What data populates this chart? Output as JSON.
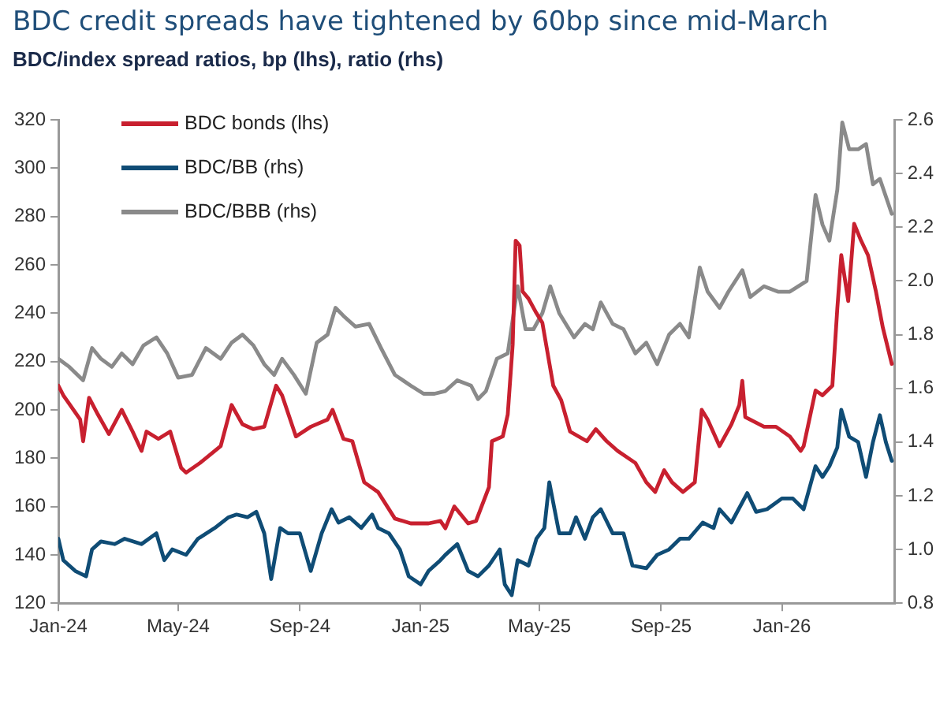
{
  "chart_data": {
    "type": "line",
    "title": "BDC credit spreads have tightened by 60bp since mid-March",
    "subtitle": "BDC/index spread ratios, bp (lhs), ratio (rhs)",
    "xlim": [
      "2024-01-01",
      "2026-04-25"
    ],
    "xticks": [
      {
        "value": "2024-01-01",
        "label": "Jan-24"
      },
      {
        "value": "2024-05-01",
        "label": "May-24"
      },
      {
        "value": "2024-09-01",
        "label": "Sep-24"
      },
      {
        "value": "2025-01-01",
        "label": "Jan-25"
      },
      {
        "value": "2025-05-01",
        "label": "May-25"
      },
      {
        "value": "2025-09-01",
        "label": "Sep-25"
      },
      {
        "value": "2026-01-01",
        "label": "Jan-26"
      }
    ],
    "ylim": [
      120,
      320
    ],
    "yticks": [
      120,
      140,
      160,
      180,
      200,
      220,
      240,
      260,
      280,
      300,
      320
    ],
    "y2lim": [
      0.8,
      2.6
    ],
    "y2ticks": [
      0.8,
      {
        "value": 1,
        "label": "1.0"
      },
      1.2,
      1.4,
      1.6,
      1.8,
      {
        "value": 2,
        "label": "2.0"
      },
      2.2,
      2.4,
      2.6
    ],
    "grid": false,
    "legend": "top left",
    "series": [
      {
        "name": "BDC bonds (lhs)",
        "color": "#c8202f",
        "x": [
          "2024-01-01",
          "2024-01-06",
          "2024-01-23",
          "2024-01-26",
          "2024-02-01",
          "2024-02-10",
          "2024-02-21",
          "2024-03-05",
          "2024-03-16",
          "2024-03-25",
          "2024-03-30",
          "2024-04-11",
          "2024-04-23",
          "2024-05-04",
          "2024-05-09",
          "2024-05-23",
          "2024-06-13",
          "2024-06-24",
          "2024-07-05",
          "2024-07-16",
          "2024-07-27",
          "2024-08-08",
          "2024-08-14",
          "2024-08-28",
          "2024-09-12",
          "2024-09-29",
          "2024-10-04",
          "2024-10-15",
          "2024-10-24",
          "2024-11-05",
          "2024-11-19",
          "2024-12-06",
          "2024-12-22",
          "2025-01-09",
          "2025-01-21",
          "2025-01-26",
          "2025-02-04",
          "2025-02-18",
          "2025-02-26",
          "2025-03-11",
          "2025-03-14",
          "2025-03-25",
          "2025-03-30",
          "2025-04-04",
          "2025-04-07",
          "2025-04-11",
          "2025-04-14",
          "2025-04-20",
          "2025-04-28",
          "2025-05-04",
          "2025-05-15",
          "2025-05-23",
          "2025-06-01",
          "2025-06-18",
          "2025-06-27",
          "2025-07-08",
          "2025-07-19",
          "2025-08-06",
          "2025-08-17",
          "2025-08-26",
          "2025-09-04",
          "2025-09-12",
          "2025-09-23",
          "2025-10-05",
          "2025-10-12",
          "2025-10-18",
          "2025-10-30",
          "2025-11-11",
          "2025-11-19",
          "2025-11-22",
          "2025-11-25",
          "2025-12-14",
          "2025-12-26",
          "2026-01-09",
          "2026-01-20",
          "2026-01-23",
          "2026-02-04",
          "2026-02-11",
          "2026-02-21",
          "2026-02-26",
          "2026-03-02",
          "2026-03-09",
          "2026-03-15",
          "2026-03-22",
          "2026-03-29",
          "2026-04-06",
          "2026-04-13",
          "2026-04-22"
        ],
        "values": [
          210,
          206,
          196,
          187,
          205,
          198,
          190,
          200,
          191,
          183,
          191,
          188,
          191,
          176,
          174,
          178,
          185,
          202,
          194,
          192,
          193,
          210,
          206,
          189,
          193,
          196,
          200,
          188,
          187,
          170,
          166,
          155,
          153,
          153,
          154,
          151,
          160,
          153,
          154,
          168,
          187,
          189,
          198,
          227,
          270,
          268,
          249,
          246,
          240,
          236,
          210,
          204,
          191,
          187,
          192,
          187,
          183,
          178,
          170,
          166,
          175,
          170,
          166,
          170,
          200,
          196,
          185,
          194,
          202,
          212,
          197,
          193,
          193,
          189,
          183,
          185,
          208,
          206,
          210,
          242,
          264,
          245,
          277,
          270,
          264,
          249,
          234,
          219
        ]
      },
      {
        "name": "BDC/BB (rhs)",
        "color": "#0f4c75",
        "axis": "y2",
        "x": [
          "2024-01-01",
          "2024-01-06",
          "2024-01-18",
          "2024-01-29",
          "2024-02-04",
          "2024-02-13",
          "2024-02-27",
          "2024-03-08",
          "2024-03-25",
          "2024-04-09",
          "2024-04-17",
          "2024-04-25",
          "2024-05-09",
          "2024-05-21",
          "2024-06-07",
          "2024-06-21",
          "2024-06-29",
          "2024-07-10",
          "2024-07-19",
          "2024-07-27",
          "2024-08-03",
          "2024-08-12",
          "2024-08-20",
          "2024-09-01",
          "2024-09-12",
          "2024-09-23",
          "2024-10-03",
          "2024-10-10",
          "2024-10-21",
          "2024-11-02",
          "2024-11-13",
          "2024-11-19",
          "2024-11-30",
          "2024-12-11",
          "2024-12-20",
          "2025-01-01",
          "2025-01-09",
          "2025-01-21",
          "2025-01-26",
          "2025-02-07",
          "2025-02-18",
          "2025-02-28",
          "2025-03-11",
          "2025-03-22",
          "2025-03-27",
          "2025-04-03",
          "2025-04-09",
          "2025-04-20",
          "2025-04-28",
          "2025-05-06",
          "2025-05-11",
          "2025-05-21",
          "2025-06-01",
          "2025-06-07",
          "2025-06-16",
          "2025-06-24",
          "2025-07-02",
          "2025-07-14",
          "2025-07-25",
          "2025-08-03",
          "2025-08-17",
          "2025-08-28",
          "2025-09-09",
          "2025-09-20",
          "2025-09-29",
          "2025-10-13",
          "2025-10-24",
          "2025-10-30",
          "2025-11-11",
          "2025-11-27",
          "2025-12-06",
          "2025-12-17",
          "2026-01-01",
          "2026-01-12",
          "2026-01-23",
          "2026-02-04",
          "2026-02-11",
          "2026-02-18",
          "2026-02-26",
          "2026-03-02",
          "2026-03-10",
          "2026-03-19",
          "2026-03-27",
          "2026-04-03",
          "2026-04-10",
          "2026-04-16",
          "2026-04-22"
        ],
        "values": [
          1.04,
          0.96,
          0.92,
          0.9,
          1,
          1.03,
          1.02,
          1.04,
          1.02,
          1.06,
          0.96,
          1,
          0.98,
          1.04,
          1.08,
          1.12,
          1.13,
          1.12,
          1.14,
          1.06,
          0.89,
          1.08,
          1.06,
          1.06,
          0.92,
          1.06,
          1.15,
          1.1,
          1.12,
          1.08,
          1.13,
          1.08,
          1.06,
          1,
          0.9,
          0.87,
          0.92,
          0.96,
          0.98,
          1.02,
          0.92,
          0.9,
          0.94,
          1,
          0.87,
          0.83,
          0.96,
          0.94,
          1.04,
          1.08,
          1.25,
          1.06,
          1.06,
          1.12,
          1.04,
          1.12,
          1.15,
          1.06,
          1.06,
          0.94,
          0.93,
          0.98,
          1,
          1.04,
          1.04,
          1.1,
          1.08,
          1.15,
          1.1,
          1.21,
          1.14,
          1.15,
          1.19,
          1.19,
          1.15,
          1.31,
          1.27,
          1.31,
          1.38,
          1.52,
          1.42,
          1.4,
          1.27,
          1.4,
          1.5,
          1.4,
          1.33
        ]
      },
      {
        "name": "BDC/BBB (rhs)",
        "color": "#8a8a8a",
        "axis": "y2",
        "x": [
          "2024-01-01",
          "2024-01-12",
          "2024-01-26",
          "2024-02-04",
          "2024-02-13",
          "2024-02-24",
          "2024-03-05",
          "2024-03-16",
          "2024-03-27",
          "2024-04-09",
          "2024-04-20",
          "2024-05-01",
          "2024-05-15",
          "2024-05-29",
          "2024-06-13",
          "2024-06-24",
          "2024-07-05",
          "2024-07-16",
          "2024-07-27",
          "2024-08-06",
          "2024-08-14",
          "2024-08-26",
          "2024-09-07",
          "2024-09-18",
          "2024-09-29",
          "2024-10-07",
          "2024-10-15",
          "2024-10-27",
          "2024-11-10",
          "2024-11-22",
          "2024-12-06",
          "2024-12-22",
          "2025-01-04",
          "2025-01-15",
          "2025-01-26",
          "2025-02-07",
          "2025-02-21",
          "2025-02-28",
          "2025-03-08",
          "2025-03-19",
          "2025-03-30",
          "2025-04-09",
          "2025-04-17",
          "2025-04-25",
          "2025-05-04",
          "2025-05-12",
          "2025-05-21",
          "2025-06-05",
          "2025-06-16",
          "2025-06-24",
          "2025-07-02",
          "2025-07-14",
          "2025-07-25",
          "2025-08-06",
          "2025-08-17",
          "2025-08-28",
          "2025-09-09",
          "2025-09-20",
          "2025-09-29",
          "2025-10-10",
          "2025-10-18",
          "2025-10-30",
          "2025-11-08",
          "2025-11-22",
          "2025-11-30",
          "2025-12-14",
          "2025-12-28",
          "2026-01-09",
          "2026-01-26",
          "2026-02-04",
          "2026-02-11",
          "2026-02-18",
          "2026-02-26",
          "2026-03-03",
          "2026-03-10",
          "2026-03-19",
          "2026-03-27",
          "2026-04-03",
          "2026-04-10",
          "2026-04-22"
        ],
        "values": [
          1.71,
          1.68,
          1.63,
          1.75,
          1.71,
          1.68,
          1.73,
          1.69,
          1.76,
          1.79,
          1.73,
          1.64,
          1.65,
          1.75,
          1.71,
          1.77,
          1.8,
          1.76,
          1.69,
          1.65,
          1.71,
          1.65,
          1.58,
          1.77,
          1.8,
          1.9,
          1.87,
          1.83,
          1.84,
          1.75,
          1.65,
          1.61,
          1.58,
          1.58,
          1.59,
          1.63,
          1.61,
          1.56,
          1.59,
          1.71,
          1.73,
          1.98,
          1.82,
          1.82,
          1.88,
          1.98,
          1.88,
          1.79,
          1.84,
          1.82,
          1.92,
          1.84,
          1.82,
          1.73,
          1.77,
          1.69,
          1.8,
          1.84,
          1.79,
          2.05,
          1.96,
          1.9,
          1.96,
          2.04,
          1.94,
          1.98,
          1.96,
          1.96,
          2,
          2.32,
          2.21,
          2.15,
          2.34,
          2.59,
          2.49,
          2.49,
          2.51,
          2.36,
          2.38,
          2.25
        ]
      }
    ]
  }
}
